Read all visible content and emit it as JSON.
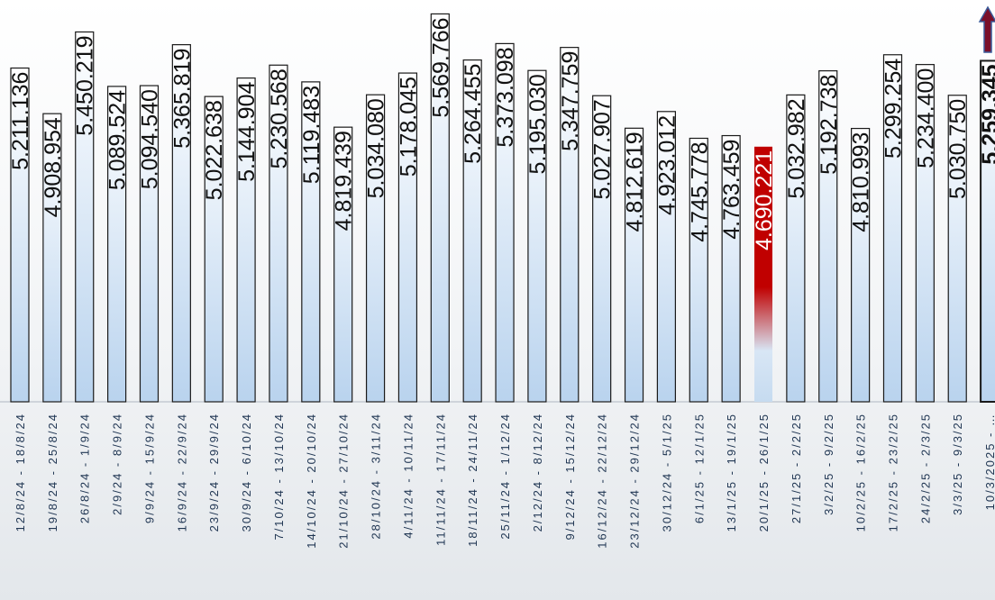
{
  "chart_data": {
    "type": "bar",
    "categories": [
      "12/8/24 - 18/8/24",
      "19/8/24 - 25/8/24",
      "26/8/24 - 1/9/24",
      "2/9/24 - 8/9/24",
      "9/9/24 - 15/9/24",
      "16/9/24 - 22/9/24",
      "23/9/24 - 29/9/24",
      "30/9/24 - 6/10/24",
      "7/10/24 - 13/10/24",
      "14/10/24 - 20/10/24",
      "21/10/24 - 27/10/24",
      "28/10/24 - 3/11/24",
      "4/11/24 - 10/11/24",
      "11/11/24 - 17/11/24",
      "18/11/24 - 24/11/24",
      "25/11/24 - 1/12/24",
      "2/12/24 - 8/12/24",
      "9/12/24 - 15/12/24",
      "16/12/24 - 22/12/24",
      "23/12/24 - 29/12/24",
      "30/12/24 - 5/1/25",
      "6/1/25 - 12/1/25",
      "13/1/25 - 19/1/25",
      "20/1/25 - 26/1/25",
      "27/1/25 - 2/2/25",
      "3/2/25 - 9/2/25",
      "10/2/25 - 16/2/25",
      "17/2/25 - 23/2/25",
      "24/2/25 - 2/3/25",
      "3/3/25 - 9/3/25",
      "10/3/2025 - …"
    ],
    "values": [
      5211136,
      4908954,
      5450219,
      5089524,
      5094540,
      5365819,
      5022638,
      5144904,
      5230568,
      5119483,
      4819439,
      5034080,
      5178045,
      5569766,
      5264455,
      5373098,
      5195030,
      5347759,
      5027907,
      4812619,
      4923012,
      4745778,
      4763459,
      4690221,
      5032982,
      5192738,
      4810993,
      5299254,
      5234400,
      5030750,
      5259345
    ],
    "value_labels": [
      "5.211.136",
      "4.908.954",
      "5.450.219",
      "5.089.524",
      "5.094.540",
      "5.365.819",
      "5.022.638",
      "5.144.904",
      "5.230.568",
      "5.119.483",
      "4.819.439",
      "5.034.080",
      "5.178.045",
      "5.569.766",
      "5.264.455",
      "5.373.098",
      "5.195.030",
      "5.347.759",
      "5.027.907",
      "4.812.619",
      "4.923.012",
      "4.745.778",
      "4.763.459",
      "4.690.221",
      "5.032.982",
      "5.192.738",
      "4.810.993",
      "5.299.254",
      "5.234.400",
      "5.030.750",
      "5.259.345"
    ],
    "color": "#b9d3ee",
    "highlight_color": "#c00000",
    "ylim": [
      3000000,
      5650000
    ]
  }
}
